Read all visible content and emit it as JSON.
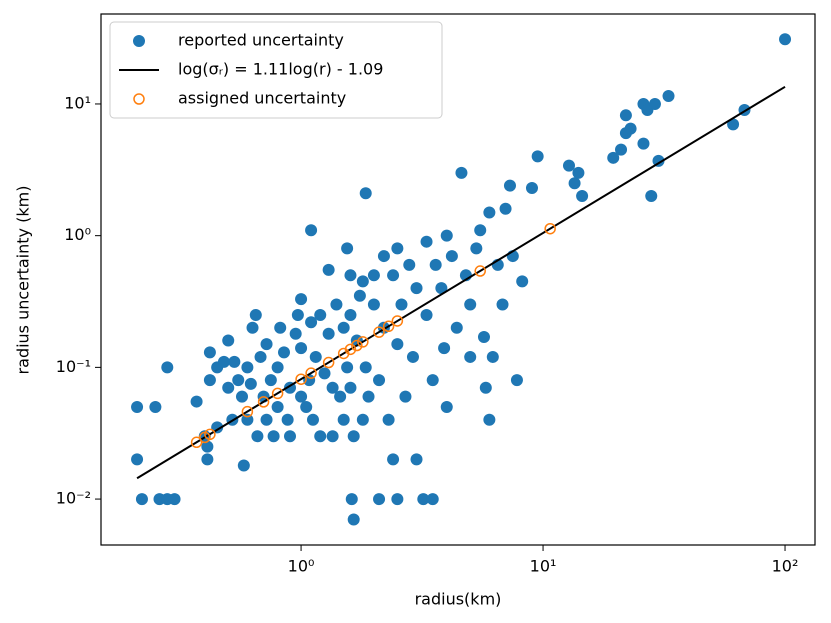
{
  "chart_data": {
    "type": "scatter",
    "xlabel": "radius(km)",
    "ylabel": "radius uncertainty (km)",
    "xscale": "log",
    "yscale": "log",
    "xlim": [
      0.149,
      133
    ],
    "ylim": [
      0.00448,
      48.2
    ],
    "xticks": [
      {
        "value": 1,
        "label": "10⁰"
      },
      {
        "value": 10,
        "label": "10¹"
      },
      {
        "value": 100,
        "label": "10²"
      }
    ],
    "yticks": [
      {
        "value": 0.01,
        "label": "10⁻²"
      },
      {
        "value": 0.1,
        "label": "10⁻¹"
      },
      {
        "value": 1,
        "label": "10⁰"
      },
      {
        "value": 10,
        "label": "10¹"
      }
    ],
    "legend": "upper left",
    "series": [
      {
        "name": "reported uncertainty",
        "color": "#1f77b4",
        "marker": "filled",
        "x": [
          0.21,
          0.21,
          0.22,
          0.25,
          0.26,
          0.28,
          0.28,
          0.3,
          0.37,
          0.4,
          0.41,
          0.41,
          0.42,
          0.42,
          0.45,
          0.45,
          0.48,
          0.5,
          0.5,
          0.52,
          0.53,
          0.55,
          0.57,
          0.58,
          0.6,
          0.6,
          0.62,
          0.63,
          0.65,
          0.66,
          0.68,
          0.7,
          0.72,
          0.72,
          0.75,
          0.77,
          0.8,
          0.8,
          0.82,
          0.85,
          0.88,
          0.9,
          0.9,
          0.95,
          0.97,
          1.0,
          1.0,
          1.0,
          1.05,
          1.08,
          1.1,
          1.1,
          1.12,
          1.15,
          1.2,
          1.2,
          1.25,
          1.3,
          1.3,
          1.35,
          1.35,
          1.4,
          1.45,
          1.5,
          1.5,
          1.55,
          1.55,
          1.6,
          1.6,
          1.6,
          1.62,
          1.65,
          1.65,
          1.7,
          1.75,
          1.8,
          1.8,
          1.85,
          1.85,
          1.9,
          2.0,
          2.0,
          2.1,
          2.1,
          2.2,
          2.2,
          2.3,
          2.4,
          2.4,
          2.5,
          2.5,
          2.5,
          2.6,
          2.7,
          2.8,
          2.9,
          3.0,
          3.0,
          3.2,
          3.3,
          3.3,
          3.5,
          3.5,
          3.6,
          3.8,
          3.9,
          4.0,
          4.0,
          4.2,
          4.4,
          4.6,
          4.8,
          5.0,
          5.0,
          5.3,
          5.5,
          5.7,
          5.8,
          6.0,
          6.0,
          6.2,
          6.5,
          6.8,
          7.0,
          7.3,
          7.5,
          7.8,
          8.2,
          9.0,
          9.5,
          12.8,
          13.5,
          14.0,
          14.5,
          19.5,
          21,
          22,
          22,
          23,
          26,
          26,
          27,
          28,
          29,
          30,
          33,
          61,
          68,
          100
        ],
        "values": [
          0.02,
          0.05,
          0.01,
          0.05,
          0.01,
          0.1,
          0.01,
          0.01,
          0.055,
          0.03,
          0.025,
          0.02,
          0.13,
          0.08,
          0.035,
          0.1,
          0.11,
          0.16,
          0.07,
          0.04,
          0.11,
          0.08,
          0.06,
          0.018,
          0.1,
          0.04,
          0.075,
          0.2,
          0.25,
          0.03,
          0.12,
          0.06,
          0.15,
          0.04,
          0.08,
          0.03,
          0.1,
          0.05,
          0.2,
          0.13,
          0.04,
          0.07,
          0.03,
          0.18,
          0.25,
          0.33,
          0.06,
          0.14,
          0.05,
          0.08,
          1.1,
          0.22,
          0.04,
          0.12,
          0.25,
          0.03,
          0.09,
          0.55,
          0.18,
          0.07,
          0.03,
          0.3,
          0.06,
          0.2,
          0.04,
          0.8,
          0.1,
          0.5,
          0.25,
          0.07,
          0.01,
          0.007,
          0.03,
          0.16,
          0.35,
          0.04,
          0.45,
          2.1,
          0.1,
          0.06,
          0.3,
          0.5,
          0.01,
          0.08,
          0.7,
          0.2,
          0.04,
          0.5,
          0.02,
          0.8,
          0.01,
          0.15,
          0.3,
          0.06,
          0.6,
          0.12,
          0.4,
          0.02,
          0.01,
          0.9,
          0.25,
          0.08,
          0.01,
          0.6,
          0.4,
          0.14,
          1.0,
          0.05,
          0.7,
          0.2,
          3.0,
          0.5,
          0.3,
          0.12,
          0.8,
          1.1,
          0.17,
          0.07,
          1.5,
          0.04,
          0.12,
          0.6,
          0.3,
          1.6,
          2.4,
          0.7,
          0.08,
          0.45,
          2.3,
          4.0,
          3.4,
          2.5,
          3.0,
          2.0,
          3.9,
          4.5,
          6.0,
          8.2,
          6.5,
          10,
          5.0,
          9.0,
          2.0,
          10,
          3.7,
          11.5,
          7.0,
          9.0,
          31
        ]
      },
      {
        "name": "log(σᵣ) = 1.11log(r) - 1.09",
        "color": "#000000",
        "marker": "line",
        "x": [
          0.21,
          100
        ],
        "values": [
          0.0144,
          13.5
        ]
      },
      {
        "name": "assigned uncertainty",
        "color": "#ff7f0e",
        "marker": "open",
        "x": [
          0.37,
          0.4,
          0.42,
          0.6,
          0.7,
          0.8,
          1.0,
          1.1,
          1.3,
          1.5,
          1.6,
          1.7,
          1.8,
          2.1,
          2.3,
          2.5,
          5.5,
          10.7
        ],
        "values": [
          0.027,
          0.0294,
          0.031,
          0.0461,
          0.0547,
          0.0634,
          0.0813,
          0.0904,
          0.1088,
          0.1275,
          0.137,
          0.1465,
          0.156,
          0.185,
          0.205,
          0.225,
          0.539,
          1.129
        ]
      }
    ]
  }
}
